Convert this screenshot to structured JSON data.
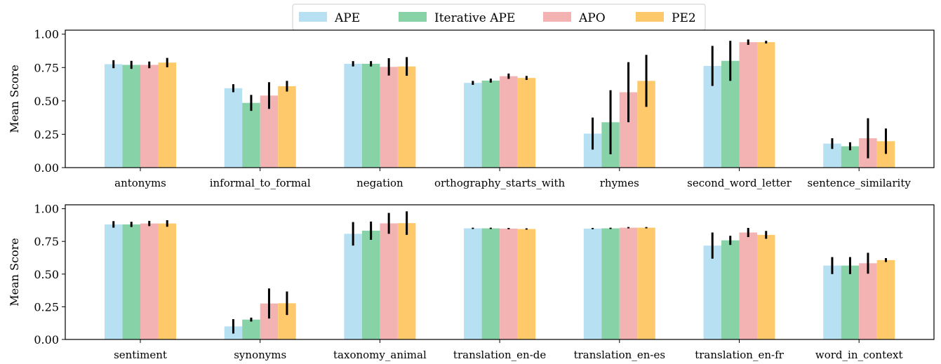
{
  "chart_data": [
    {
      "type": "bar",
      "ylabel": "Mean Score",
      "ylim": [
        0,
        1.03
      ],
      "yticks": [
        "0.00",
        "0.25",
        "0.50",
        "0.75",
        "1.00"
      ],
      "ytick_values": [
        0,
        0.25,
        0.5,
        0.75,
        1.0
      ],
      "grid": false,
      "legend": {
        "placement": "top-center",
        "entries": [
          "APE",
          "Iterative APE",
          "APO",
          "PE2"
        ]
      },
      "categories": [
        "antonyms",
        "informal_to_formal",
        "negation",
        "orthography_starts_with",
        "rhymes",
        "second_word_letter",
        "sentence_similarity"
      ],
      "series": [
        {
          "name": "APE",
          "color": "#b8e0f3",
          "values": [
            0.775,
            0.595,
            0.778,
            0.635,
            0.255,
            0.762,
            0.18
          ],
          "err": [
            0.03,
            0.03,
            0.02,
            0.015,
            0.12,
            0.15,
            0.04
          ]
        },
        {
          "name": "Iterative APE",
          "color": "#88d2a8",
          "values": [
            0.77,
            0.485,
            0.778,
            0.652,
            0.34,
            0.8,
            0.16
          ],
          "err": [
            0.03,
            0.06,
            0.02,
            0.015,
            0.24,
            0.15,
            0.03
          ]
        },
        {
          "name": "APO",
          "color": "#f4b3b3",
          "values": [
            0.77,
            0.54,
            0.755,
            0.685,
            0.565,
            0.94,
            0.22
          ],
          "err": [
            0.025,
            0.1,
            0.065,
            0.02,
            0.225,
            0.02,
            0.15
          ]
        },
        {
          "name": "PE2",
          "color": "#fec96a",
          "values": [
            0.787,
            0.61,
            0.758,
            0.672,
            0.65,
            0.94,
            0.198
          ],
          "err": [
            0.035,
            0.04,
            0.07,
            0.015,
            0.195,
            0.01,
            0.095
          ]
        }
      ]
    },
    {
      "type": "bar",
      "ylabel": "Mean Score",
      "ylim": [
        0,
        1.03
      ],
      "yticks": [
        "0.00",
        "0.25",
        "0.50",
        "0.75",
        "1.00"
      ],
      "ytick_values": [
        0,
        0.25,
        0.5,
        0.75,
        1.0
      ],
      "grid": false,
      "categories": [
        "sentiment",
        "synonyms",
        "taxonomy_animal",
        "translation_en-de",
        "translation_en-es",
        "translation_en-fr",
        "word_in_context"
      ],
      "series": [
        {
          "name": "APE",
          "color": "#b8e0f3",
          "values": [
            0.88,
            0.1,
            0.808,
            0.85,
            0.848,
            0.718,
            0.565
          ],
          "err": [
            0.025,
            0.055,
            0.09,
            0.005,
            0.005,
            0.1,
            0.065
          ]
        },
        {
          "name": "Iterative APE",
          "color": "#88d2a8",
          "values": [
            0.88,
            0.152,
            0.832,
            0.85,
            0.85,
            0.758,
            0.565
          ],
          "err": [
            0.02,
            0.015,
            0.07,
            0.005,
            0.005,
            0.035,
            0.065
          ]
        },
        {
          "name": "APO",
          "color": "#f4b3b3",
          "values": [
            0.887,
            0.275,
            0.888,
            0.848,
            0.855,
            0.818,
            0.583
          ],
          "err": [
            0.02,
            0.115,
            0.08,
            0.005,
            0.005,
            0.035,
            0.08
          ]
        },
        {
          "name": "PE2",
          "color": "#fec96a",
          "values": [
            0.887,
            0.277,
            0.89,
            0.845,
            0.855,
            0.8,
            0.607
          ],
          "err": [
            0.025,
            0.09,
            0.09,
            0.005,
            0.005,
            0.03,
            0.015
          ]
        }
      ]
    }
  ]
}
